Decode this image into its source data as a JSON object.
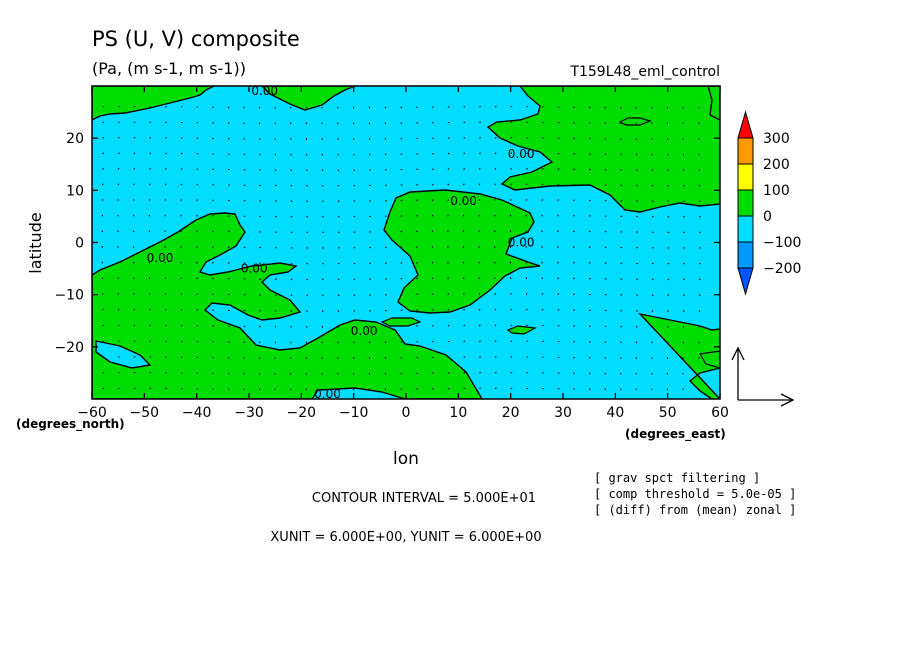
{
  "chart_data": {
    "type": "contour",
    "title": "PS (U, V) composite",
    "subtitle": "(Pa, (m s-1, m s-1))",
    "experiment": "T159L48_eml_control",
    "xlabel": "lon",
    "ylabel": "latitude",
    "x_unit_label": "(degrees_east)",
    "y_unit_label": "(degrees_north)",
    "xlim": [
      -60,
      60
    ],
    "ylim": [
      -30,
      30
    ],
    "x_ticks": [
      -60,
      -50,
      -40,
      -30,
      -20,
      -10,
      0,
      10,
      20,
      30,
      40,
      50,
      60
    ],
    "x_tick_labels": [
      "−60",
      "−50",
      "−40",
      "−30",
      "−20",
      "−10",
      "0",
      "10",
      "20",
      "30",
      "40",
      "50",
      "60"
    ],
    "y_ticks": [
      -20,
      -10,
      0,
      10,
      20
    ],
    "y_tick_labels": [
      "−20",
      "−10",
      "0",
      "10",
      "20"
    ],
    "contour_labels": [
      {
        "text": "0.00",
        "lon": -27,
        "lat": 29
      },
      {
        "text": "0.00",
        "lon": 22,
        "lat": 17
      },
      {
        "text": "0.00",
        "lon": 11,
        "lat": 8
      },
      {
        "text": "0.00",
        "lon": 22,
        "lat": 0
      },
      {
        "text": "0.00",
        "lon": -47,
        "lat": -3
      },
      {
        "text": "0.00",
        "lon": -29,
        "lat": -5
      },
      {
        "text": "0.00",
        "lon": -8,
        "lat": -17
      },
      {
        "text": "0.00",
        "lon": -15,
        "lat": -29
      }
    ],
    "colorbar": {
      "labels": [
        "300",
        "200",
        "100",
        "0",
        "−100",
        "−200"
      ],
      "colors": [
        "#ff0000",
        "#ff9900",
        "#ffff00",
        "#00dd00",
        "#00ddff",
        "#0099ff",
        "#0055ff"
      ]
    },
    "fill_colors": {
      "positive": "#00dd00",
      "negative": "#00ddff"
    },
    "footer": {
      "contour_interval": "CONTOUR INTERVAL = 5.000E+01",
      "units": "XUNIT = 6.000E+00, YUNIT = 6.000E+00",
      "notes": [
        "[ grav spct filtering ]",
        "[ comp threshold = 5.0e-05 ]",
        "[ (diff) from (mean) zonal ]"
      ]
    }
  }
}
